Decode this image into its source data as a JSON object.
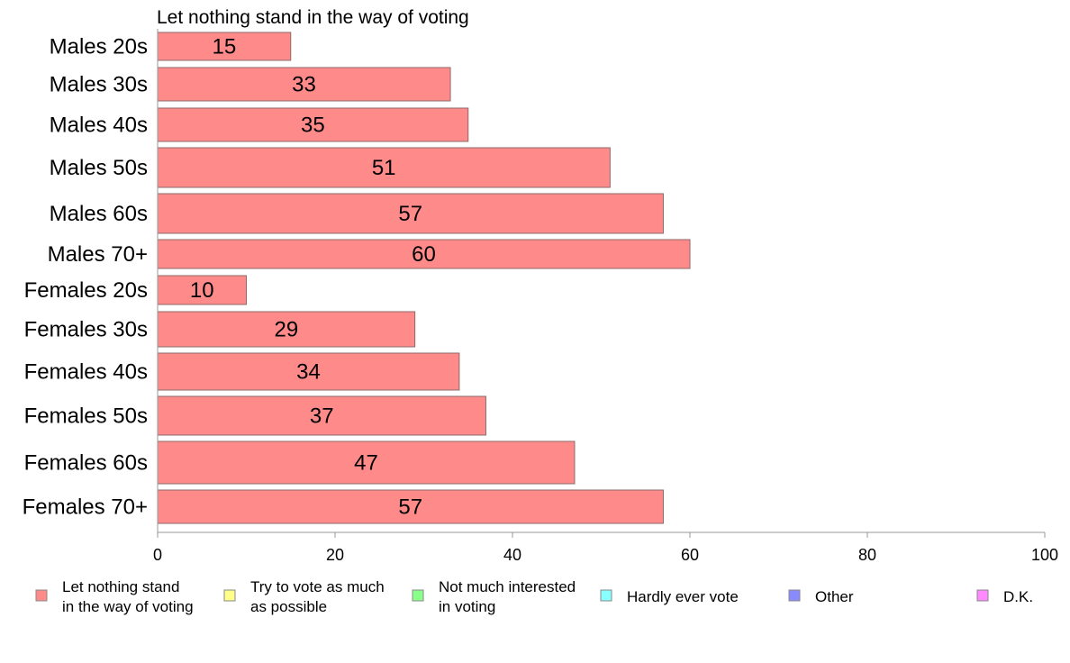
{
  "chart_data": {
    "type": "bar",
    "orientation": "horizontal",
    "title": "Let nothing stand in the way of voting",
    "categories": [
      "Males 20s",
      "Males 30s",
      "Males 40s",
      "Males 50s",
      "Males 60s",
      "Males 70+",
      "Females 20s",
      "Females 30s",
      "Females 40s",
      "Females 50s",
      "Females 60s",
      "Females 70+"
    ],
    "values": [
      15,
      33,
      35,
      51,
      57,
      60,
      10,
      29,
      34,
      37,
      47,
      57
    ],
    "data_labels": [
      "15",
      "33",
      "35",
      "51",
      "57",
      "60",
      "10",
      "29",
      "34",
      "37",
      "47",
      "57"
    ],
    "x_ticks": [
      "0",
      "20",
      "40",
      "60",
      "80",
      "100"
    ],
    "xlim": [
      0,
      100
    ],
    "grid": false,
    "bar_color": "#ff8a8a",
    "bar_stroke": "#8c6a6a",
    "legend": {
      "placement": "bottom",
      "entries": [
        {
          "lines": [
            "Let nothing stand",
            "in the way of voting"
          ],
          "color": "#ff8a8a"
        },
        {
          "lines": [
            "Try to vote as much",
            "as possible"
          ],
          "color": "#ffff8a"
        },
        {
          "lines": [
            "Not much interested",
            "in voting"
          ],
          "color": "#8aff8a"
        },
        {
          "lines": [
            "Hardly ever vote"
          ],
          "color": "#8affff"
        },
        {
          "lines": [
            "Other"
          ],
          "color": "#8a8aff"
        },
        {
          "lines": [
            "D.K."
          ],
          "color": "#ff8aff"
        }
      ]
    }
  }
}
